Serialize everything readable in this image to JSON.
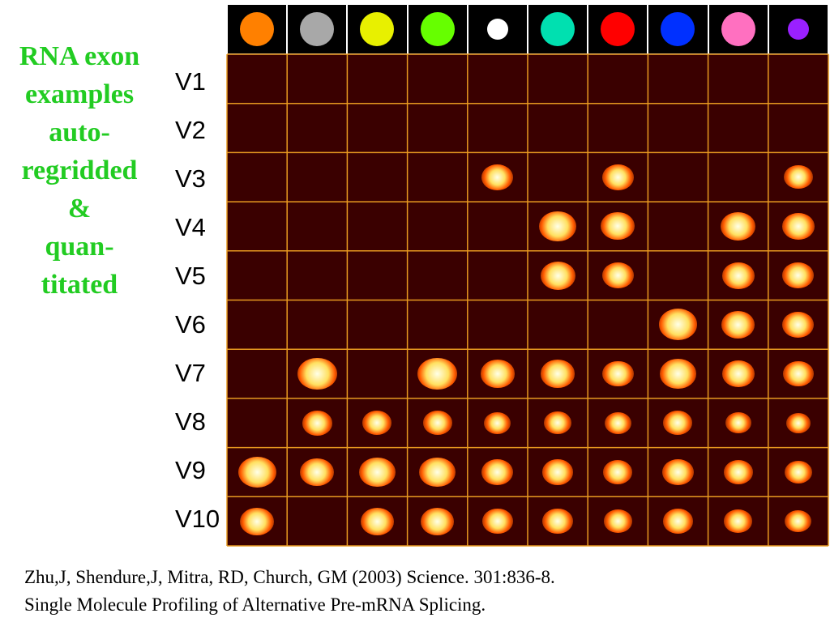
{
  "title_lines": [
    "RNA exon",
    "examples",
    "auto-",
    "regridded",
    "&",
    "quan-",
    "titated"
  ],
  "row_labels": [
    "V1",
    "V2",
    "V3",
    "V4",
    "V5",
    "V6",
    "V7",
    "V8",
    "V9",
    "V10"
  ],
  "column_legend_colors": [
    "#ff8000",
    "#a8a8a8",
    "#e8f000",
    "#66ff00",
    "#ffffff",
    "#00e0b0",
    "#ff0000",
    "#0030ff",
    "#ff70c0",
    "#9a20ff"
  ],
  "colors": {
    "title": "#22cc22",
    "grid_line": "#e89a20",
    "cell_background": "#3a0000"
  },
  "spot_intensities": [
    [
      0,
      0,
      0,
      0,
      0,
      0,
      0,
      0,
      0,
      0
    ],
    [
      0,
      0,
      0,
      0,
      0,
      0,
      0,
      0,
      0,
      0
    ],
    [
      0,
      0,
      0,
      0,
      0.6,
      0,
      0.6,
      0,
      0,
      0.5
    ],
    [
      0,
      0,
      0,
      0,
      0,
      0.85,
      0.7,
      0,
      0.75,
      0.65
    ],
    [
      0,
      0,
      0,
      0,
      0,
      0.75,
      0.6,
      0,
      0.65,
      0.6
    ],
    [
      0,
      0,
      0,
      0,
      0,
      0,
      0,
      0.9,
      0.7,
      0.6
    ],
    [
      0,
      0.95,
      0,
      0.95,
      0.7,
      0.7,
      0.6,
      0.8,
      0.65,
      0.55
    ],
    [
      0,
      0.55,
      0.5,
      0.5,
      0.4,
      0.45,
      0.4,
      0.5,
      0.35,
      0.3
    ],
    [
      0.9,
      0.7,
      0.8,
      0.8,
      0.6,
      0.6,
      0.5,
      0.6,
      0.5,
      0.45
    ],
    [
      0.7,
      0,
      0.7,
      0.7,
      0.55,
      0.55,
      0.45,
      0.55,
      0.45,
      0.4
    ]
  ],
  "citation_lines": [
    "Zhu,J, Shendure,J, Mitra, RD, Church, GM (2003) Science. 301:836-8.",
    "Single Molecule Profiling of Alternative Pre-mRNA Splicing."
  ]
}
